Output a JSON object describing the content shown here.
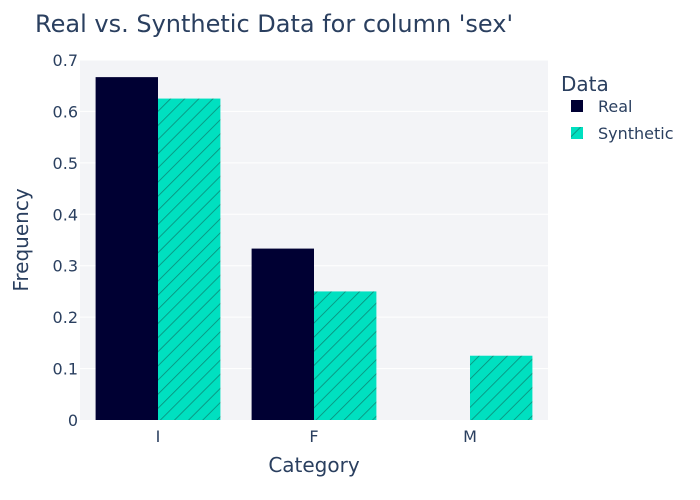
{
  "chart_data": {
    "type": "bar",
    "title": "Real vs. Synthetic Data for column 'sex'",
    "xlabel": "Category",
    "ylabel": "Frequency",
    "categories": [
      "I",
      "F",
      "M"
    ],
    "ylim": [
      0,
      0.7
    ],
    "yticks": [
      0,
      0.1,
      0.2,
      0.3,
      0.4,
      0.5,
      0.6,
      0.7
    ],
    "grid": true,
    "legend_title": "Data",
    "legend_position": "right",
    "series": [
      {
        "name": "Real",
        "values": [
          0.6667,
          0.3333,
          0
        ],
        "color": "#000033",
        "pattern": "solid"
      },
      {
        "name": "Synthetic",
        "values": [
          0.625,
          0.25,
          0.125
        ],
        "color": "#00e0c0",
        "pattern": "diagonal-hatch"
      }
    ],
    "colors": {
      "plot_background": "#f3f4f7",
      "gridline": "#ffffff",
      "text": "#2a3f5f"
    }
  }
}
